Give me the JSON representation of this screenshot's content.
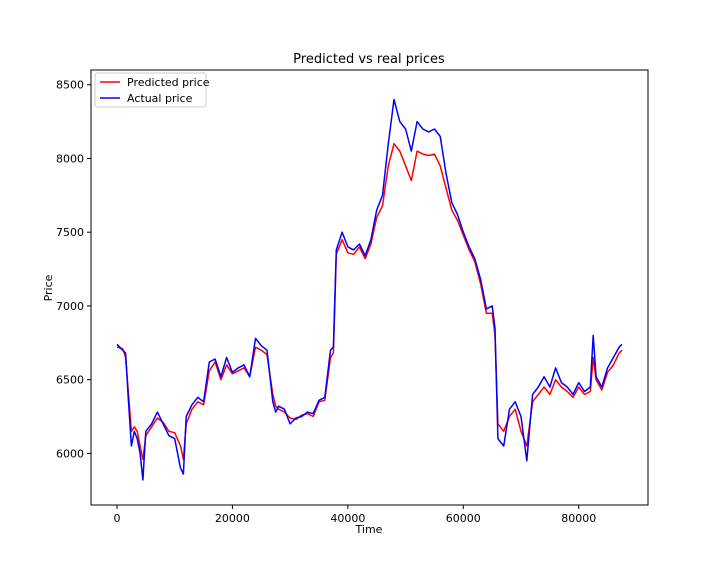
{
  "chart_data": {
    "type": "line",
    "title": "Predicted vs real prices",
    "xlabel": "Time",
    "ylabel": "Price",
    "xlim": [
      -4500,
      92000
    ],
    "ylim": [
      5650,
      8600
    ],
    "xticks": [
      0,
      20000,
      40000,
      60000,
      80000
    ],
    "yticks": [
      6000,
      6500,
      7000,
      7500,
      8000,
      8500
    ],
    "xtick_labels": [
      "0",
      "20000",
      "40000",
      "60000",
      "80000"
    ],
    "ytick_labels": [
      "6000",
      "6500",
      "7000",
      "7500",
      "8000",
      "8500"
    ],
    "legend_position": "top-left",
    "series": [
      {
        "name": "Predicted price",
        "color": "#ff0000",
        "x": [
          0,
          1000,
          1500,
          2000,
          2500,
          3000,
          3500,
          4000,
          4500,
          5000,
          6000,
          7000,
          8000,
          9000,
          10000,
          11000,
          11500,
          12000,
          13000,
          14000,
          15000,
          16000,
          17000,
          18000,
          19000,
          20000,
          21000,
          22000,
          23000,
          24000,
          25000,
          26000,
          27000,
          27500,
          28000,
          29000,
          30000,
          31000,
          32000,
          33000,
          34000,
          35000,
          36000,
          37000,
          37500,
          38000,
          39000,
          40000,
          41000,
          42000,
          43000,
          44000,
          45000,
          46000,
          47000,
          48000,
          49000,
          50000,
          51000,
          52000,
          53000,
          54000,
          55000,
          56000,
          57000,
          58000,
          59000,
          60000,
          61000,
          62000,
          63000,
          64000,
          65000,
          65500,
          66000,
          67000,
          68000,
          69000,
          70000,
          71000,
          72000,
          73000,
          74000,
          75000,
          76000,
          77000,
          78000,
          79000,
          80000,
          81000,
          82000,
          82500,
          83000,
          84000,
          85000,
          86000,
          87000,
          87500
        ],
        "values": [
          6720,
          6710,
          6650,
          6400,
          6150,
          6180,
          6150,
          6050,
          5960,
          6120,
          6180,
          6240,
          6210,
          6150,
          6140,
          6050,
          5960,
          6200,
          6300,
          6350,
          6330,
          6560,
          6620,
          6500,
          6600,
          6540,
          6560,
          6580,
          6520,
          6720,
          6700,
          6670,
          6400,
          6320,
          6300,
          6280,
          6240,
          6230,
          6260,
          6270,
          6250,
          6350,
          6360,
          6650,
          6680,
          7350,
          7450,
          7360,
          7350,
          7400,
          7320,
          7420,
          7600,
          7680,
          7950,
          8100,
          8050,
          7950,
          7850,
          8050,
          8030,
          8020,
          8030,
          7950,
          7800,
          7650,
          7580,
          7480,
          7380,
          7300,
          7150,
          6950,
          6950,
          6800,
          6200,
          6150,
          6250,
          6300,
          6150,
          6050,
          6350,
          6400,
          6450,
          6400,
          6500,
          6450,
          6420,
          6380,
          6450,
          6400,
          6420,
          6650,
          6500,
          6430,
          6550,
          6600,
          6680,
          6700
        ]
      },
      {
        "name": "Actual price",
        "color": "#0000ff",
        "x": [
          0,
          1000,
          1500,
          2000,
          2500,
          3000,
          3500,
          4000,
          4500,
          5000,
          6000,
          7000,
          8000,
          9000,
          10000,
          11000,
          11500,
          12000,
          13000,
          14000,
          15000,
          16000,
          17000,
          18000,
          19000,
          20000,
          21000,
          22000,
          23000,
          24000,
          25000,
          26000,
          27000,
          27500,
          28000,
          29000,
          30000,
          31000,
          32000,
          33000,
          34000,
          35000,
          36000,
          37000,
          37500,
          38000,
          39000,
          40000,
          41000,
          42000,
          43000,
          44000,
          45000,
          46000,
          47000,
          48000,
          49000,
          50000,
          51000,
          52000,
          53000,
          54000,
          55000,
          56000,
          57000,
          58000,
          59000,
          60000,
          61000,
          62000,
          63000,
          64000,
          65000,
          65500,
          66000,
          67000,
          68000,
          69000,
          70000,
          71000,
          72000,
          73000,
          74000,
          75000,
          76000,
          77000,
          78000,
          79000,
          80000,
          81000,
          82000,
          82500,
          83000,
          84000,
          85000,
          86000,
          87000,
          87500
        ],
        "values": [
          6740,
          6700,
          6680,
          6350,
          6050,
          6150,
          6100,
          6000,
          5820,
          6150,
          6200,
          6280,
          6200,
          6120,
          6100,
          5900,
          5860,
          6250,
          6330,
          6380,
          6350,
          6620,
          6640,
          6520,
          6650,
          6550,
          6580,
          6600,
          6520,
          6780,
          6730,
          6700,
          6350,
          6280,
          6320,
          6300,
          6200,
          6240,
          6250,
          6280,
          6270,
          6360,
          6380,
          6700,
          6720,
          7380,
          7500,
          7400,
          7380,
          7420,
          7340,
          7450,
          7650,
          7750,
          8100,
          8400,
          8250,
          8200,
          8050,
          8250,
          8200,
          8180,
          8200,
          8150,
          7900,
          7700,
          7620,
          7500,
          7400,
          7320,
          7180,
          6980,
          7000,
          6850,
          6100,
          6050,
          6300,
          6350,
          6250,
          5950,
          6400,
          6450,
          6520,
          6450,
          6580,
          6480,
          6450,
          6400,
          6480,
          6420,
          6450,
          6800,
          6520,
          6450,
          6580,
          6650,
          6720,
          6740
        ]
      }
    ]
  }
}
